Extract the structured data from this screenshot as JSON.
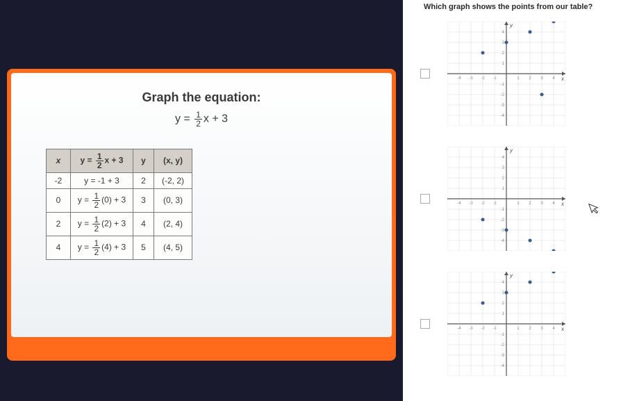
{
  "slide": {
    "title": "Graph the equation:",
    "equation_prefix": "y = ",
    "equation_frac_num": "1",
    "equation_frac_den": "2",
    "equation_suffix": "x + 3",
    "table": {
      "headers": {
        "x": "x",
        "eq": "y = ½x + 3",
        "y": "y",
        "xy": "(x, y)"
      },
      "rows": [
        {
          "x": "-2",
          "eq": "y = -1 + 3",
          "y": "2",
          "xy": "(-2, 2)"
        },
        {
          "x": "0",
          "eq": "y = ½(0) + 3",
          "y": "3",
          "xy": "(0, 3)"
        },
        {
          "x": "2",
          "eq": "y = ½(2) + 3",
          "y": "4",
          "xy": "(2, 4)"
        },
        {
          "x": "4",
          "eq": "y = ½(4) + 3",
          "y": "5",
          "xy": "(4, 5)"
        }
      ]
    }
  },
  "question": {
    "text": "Which graph shows the points from our table?"
  },
  "graphs": {
    "grid_color": "#d8d8d8",
    "axis_color": "#555555",
    "point_color": "#3a5a8a",
    "label_color": "#888888",
    "xmin": -5,
    "xmax": 5,
    "ymin": -5,
    "ymax": 5,
    "options": [
      {
        "points": [
          [
            -2,
            2
          ],
          [
            0,
            3
          ],
          [
            2,
            4
          ],
          [
            4,
            5
          ],
          [
            3,
            -2
          ]
        ],
        "ticks": true
      },
      {
        "points": [
          [
            -2,
            -2
          ],
          [
            0,
            -3
          ],
          [
            2,
            -4
          ],
          [
            4,
            -5
          ]
        ],
        "ticks": true
      },
      {
        "points": [
          [
            -2,
            2
          ],
          [
            0,
            3
          ],
          [
            2,
            4
          ],
          [
            4,
            5
          ]
        ],
        "ticks": true
      }
    ]
  },
  "colors": {
    "slide_border": "#ff6b1a",
    "slide_bg_top": "#ffffff",
    "slide_bg_bottom": "#eef1f4",
    "dark_bg": "#1a1a2e",
    "text": "#3a3a3a",
    "table_border": "#7a7a7a",
    "table_header_bg": "#d4d0c8"
  }
}
